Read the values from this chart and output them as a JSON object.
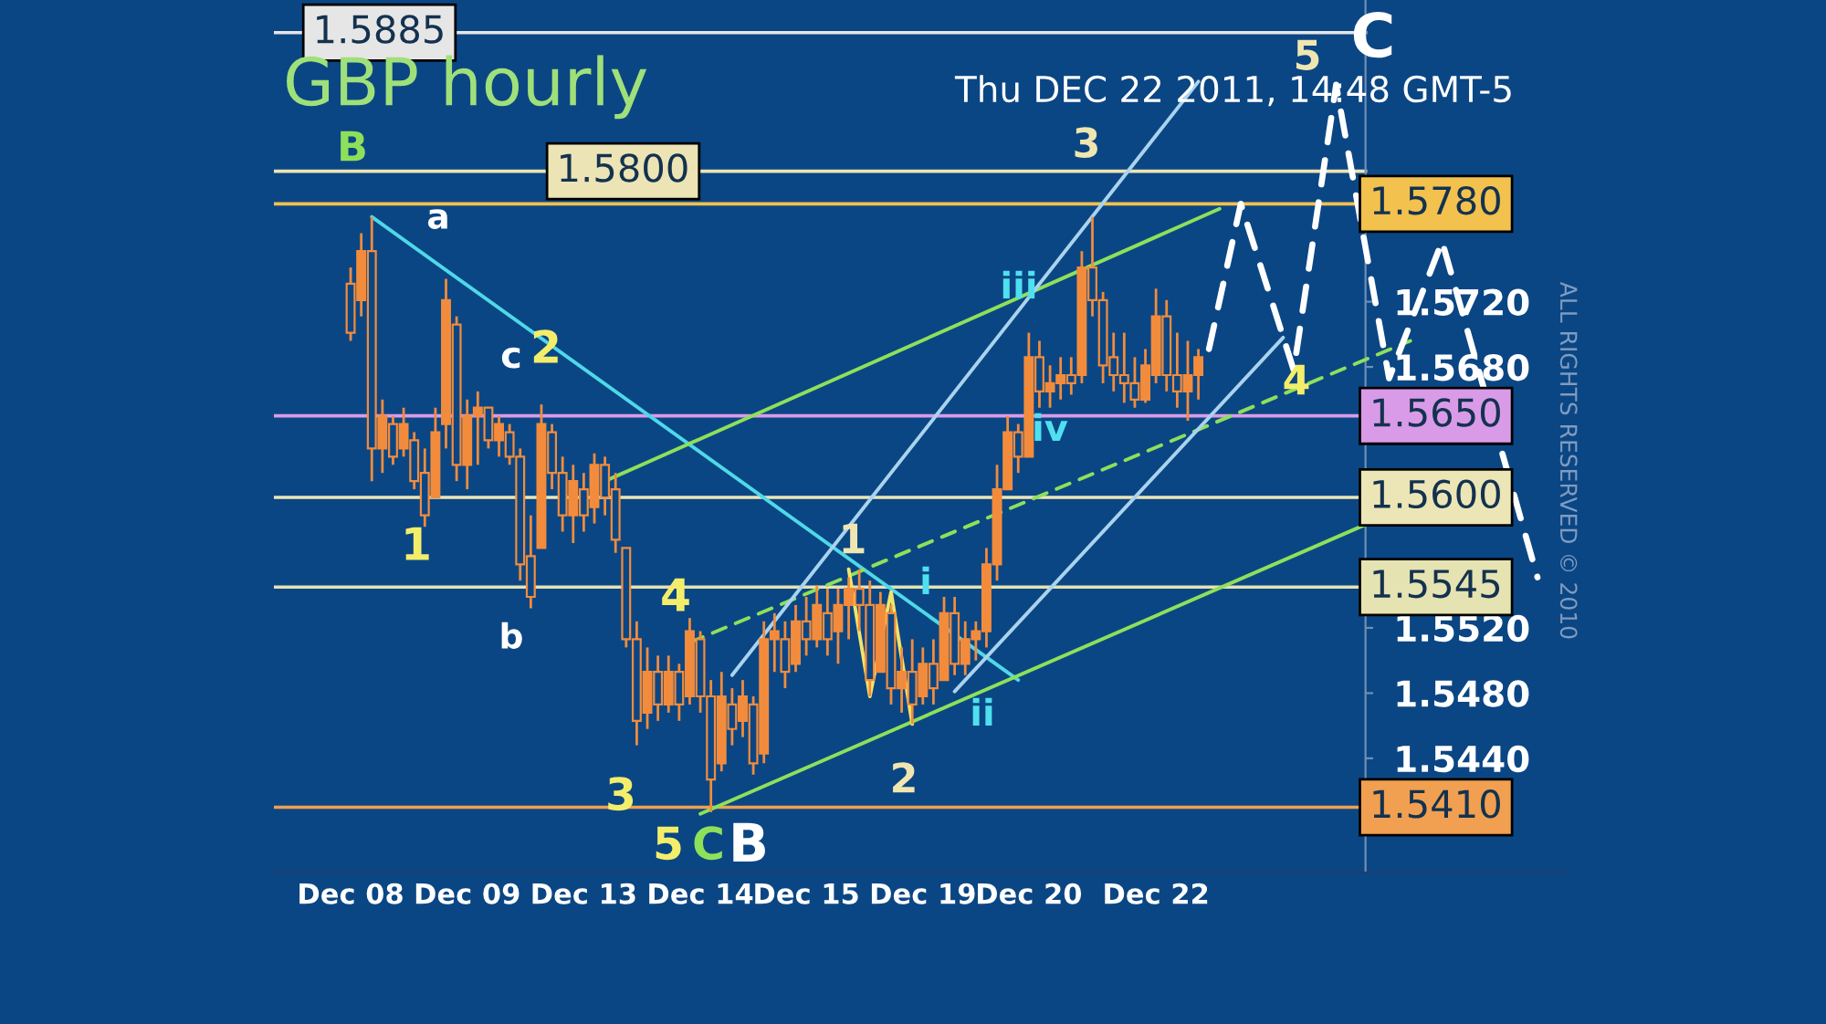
{
  "chart_data": {
    "type": "candlestick",
    "title": "GBP hourly",
    "subtitle": "Thu DEC 22 2011, 14:48 GMT-5",
    "color": "#f28c3c",
    "categories": [
      "Dec 08",
      null,
      null,
      null,
      null,
      null,
      null,
      null,
      null,
      null,
      null,
      "Dec 09",
      null,
      null,
      null,
      null,
      null,
      null,
      null,
      null,
      null,
      null,
      "Dec 13",
      null,
      null,
      null,
      null,
      null,
      null,
      null,
      null,
      null,
      null,
      "Dec 14",
      null,
      null,
      null,
      null,
      null,
      null,
      null,
      null,
      null,
      "Dec 15",
      null,
      null,
      null,
      null,
      null,
      null,
      null,
      null,
      null,
      null,
      "Dec 19",
      null,
      null,
      null,
      null,
      null,
      null,
      null,
      null,
      null,
      "Dec 20",
      null,
      null,
      null,
      null,
      null,
      null,
      null,
      null,
      null,
      null,
      null,
      "Dec 22",
      null,
      null,
      null,
      null,
      null,
      null,
      null,
      null,
      null,
      null,
      null,
      null,
      null,
      null,
      null,
      null,
      null,
      null,
      null,
      null,
      null,
      null,
      null,
      null,
      null,
      null,
      null,
      null,
      null,
      null,
      null,
      null,
      null,
      null,
      null,
      null
    ],
    "ohlc": [
      [
        1.5731,
        1.5741,
        1.5696,
        1.5701
      ],
      [
        1.5721,
        1.5762,
        1.5711,
        1.5751
      ],
      [
        1.5751,
        1.5772,
        1.561,
        1.563
      ],
      [
        1.563,
        1.566,
        1.5615,
        1.565
      ],
      [
        1.5645,
        1.565,
        1.562,
        1.5625
      ],
      [
        1.563,
        1.5655,
        1.5625,
        1.5645
      ],
      [
        1.5635,
        1.564,
        1.5605,
        1.561
      ],
      [
        1.5615,
        1.563,
        1.5582,
        1.5589
      ],
      [
        1.56,
        1.5655,
        1.56,
        1.564
      ],
      [
        1.5645,
        1.5734,
        1.563,
        1.5721
      ],
      [
        1.5706,
        1.5711,
        1.561,
        1.562
      ],
      [
        1.562,
        1.566,
        1.5605,
        1.565
      ],
      [
        1.565,
        1.5665,
        1.562,
        1.5655
      ],
      [
        1.5655,
        1.5655,
        1.563,
        1.5635
      ],
      [
        1.5635,
        1.565,
        1.5625,
        1.5645
      ],
      [
        1.564,
        1.5645,
        1.562,
        1.5625
      ],
      [
        1.5625,
        1.563,
        1.5549,
        1.5559
      ],
      [
        1.5564,
        1.5589,
        1.5532,
        1.5539
      ],
      [
        1.5569,
        1.5657,
        1.5569,
        1.5645
      ],
      [
        1.564,
        1.5645,
        1.5605,
        1.5615
      ],
      [
        1.5615,
        1.5625,
        1.5579,
        1.5589
      ],
      [
        1.5589,
        1.562,
        1.5572,
        1.561
      ],
      [
        1.5605,
        1.5615,
        1.5579,
        1.5589
      ],
      [
        1.5594,
        1.5627,
        1.5584,
        1.562
      ],
      [
        1.562,
        1.5625,
        1.5589,
        1.56
      ],
      [
        1.5605,
        1.5615,
        1.5566,
        1.5574
      ],
      [
        1.5569,
        1.5569,
        1.5508,
        1.5513
      ],
      [
        1.5513,
        1.5524,
        1.5448,
        1.5463
      ],
      [
        1.5468,
        1.5508,
        1.5458,
        1.5493
      ],
      [
        1.5493,
        1.5503,
        1.5463,
        1.5473
      ],
      [
        1.5473,
        1.5503,
        1.5468,
        1.5493
      ],
      [
        1.5493,
        1.5498,
        1.5463,
        1.5473
      ],
      [
        1.5478,
        1.5526,
        1.5473,
        1.5518
      ],
      [
        1.5513,
        1.5518,
        1.5468,
        1.5478
      ],
      [
        1.5478,
        1.5488,
        1.5407,
        1.5427
      ],
      [
        1.5437,
        1.5493,
        1.5432,
        1.5478
      ],
      [
        1.5473,
        1.5483,
        1.5448,
        1.5458
      ],
      [
        1.5463,
        1.5488,
        1.5453,
        1.5478
      ],
      [
        1.5473,
        1.5478,
        1.543,
        1.5437
      ],
      [
        1.5443,
        1.5524,
        1.5437,
        1.5513
      ],
      [
        1.5513,
        1.5529,
        1.5493,
        1.5518
      ],
      [
        1.5513,
        1.5524,
        1.5483,
        1.5493
      ],
      [
        1.5498,
        1.5534,
        1.5493,
        1.5524
      ],
      [
        1.5524,
        1.5539,
        1.5503,
        1.5513
      ],
      [
        1.5513,
        1.5546,
        1.5508,
        1.5534
      ],
      [
        1.5529,
        1.5544,
        1.5503,
        1.5513
      ],
      [
        1.5518,
        1.5544,
        1.5498,
        1.5534
      ],
      [
        1.5534,
        1.5551,
        1.5513,
        1.5544
      ],
      [
        1.5544,
        1.5556,
        1.5518,
        1.5534
      ],
      [
        1.5534,
        1.5549,
        1.5478,
        1.5488
      ],
      [
        1.5493,
        1.5542,
        1.5493,
        1.5534
      ],
      [
        1.5529,
        1.5534,
        1.5473,
        1.5483
      ],
      [
        1.5483,
        1.5508,
        1.5468,
        1.5493
      ],
      [
        1.5493,
        1.5513,
        1.5461,
        1.5473
      ],
      [
        1.5478,
        1.5508,
        1.5473,
        1.5498
      ],
      [
        1.5498,
        1.5513,
        1.5473,
        1.5483
      ],
      [
        1.5488,
        1.5539,
        1.5488,
        1.5529
      ],
      [
        1.5529,
        1.5539,
        1.5491,
        1.5498
      ],
      [
        1.5498,
        1.5524,
        1.5491,
        1.5513
      ],
      [
        1.5513,
        1.5524,
        1.55,
        1.5518
      ],
      [
        1.5518,
        1.5569,
        1.5508,
        1.5559
      ],
      [
        1.5559,
        1.562,
        1.5549,
        1.5605
      ],
      [
        1.5605,
        1.565,
        1.5605,
        1.564
      ],
      [
        1.564,
        1.5645,
        1.5615,
        1.5625
      ],
      [
        1.5625,
        1.5701,
        1.5625,
        1.5686
      ],
      [
        1.5686,
        1.5696,
        1.5655,
        1.5665
      ],
      [
        1.5665,
        1.5681,
        1.5655,
        1.567
      ],
      [
        1.567,
        1.5686,
        1.566,
        1.5675
      ],
      [
        1.5675,
        1.5686,
        1.5663,
        1.567
      ],
      [
        1.5675,
        1.5751,
        1.567,
        1.5741
      ],
      [
        1.5741,
        1.5772,
        1.5711,
        1.5721
      ],
      [
        1.5721,
        1.5726,
        1.567,
        1.5681
      ],
      [
        1.5686,
        1.5701,
        1.5665,
        1.5675
      ],
      [
        1.5675,
        1.5701,
        1.5658,
        1.567
      ],
      [
        1.567,
        1.5686,
        1.5655,
        1.566
      ],
      [
        1.566,
        1.5691,
        1.5658,
        1.5681
      ],
      [
        1.5675,
        1.5728,
        1.567,
        1.5711
      ],
      [
        1.5711,
        1.5721,
        1.5665,
        1.5675
      ],
      [
        1.5675,
        1.5701,
        1.5655,
        1.5665
      ],
      [
        1.5665,
        1.5696,
        1.5647,
        1.5675
      ],
      [
        1.5675,
        1.5691,
        1.566,
        1.5686
      ],
      null,
      null,
      null,
      null,
      null,
      null,
      null,
      null,
      null,
      null,
      null,
      null,
      null,
      null,
      null,
      null,
      null,
      null,
      null,
      null,
      null,
      null,
      null,
      null,
      null,
      null,
      null,
      null,
      null,
      null,
      null,
      null
    ],
    "series": [
      {
        "type": "line",
        "color": "#4fd8e8",
        "line_style": "solid",
        "values": [
          null,
          null,
          1.5772,
          null,
          null,
          null,
          null,
          null,
          null,
          null,
          null,
          null,
          null,
          null,
          null,
          null,
          null,
          null,
          null,
          null,
          null,
          null,
          null,
          null,
          null,
          null,
          null,
          null,
          null,
          null,
          null,
          null,
          null,
          null,
          null,
          null,
          null,
          null,
          null,
          null,
          null,
          null,
          null,
          null,
          null,
          null,
          null,
          null,
          null,
          null,
          null,
          null,
          null,
          null,
          null,
          null,
          null,
          null,
          null,
          null,
          null,
          null,
          null,
          1.5488,
          null,
          null,
          null,
          null,
          null,
          null,
          null,
          null,
          null,
          null,
          null,
          null,
          null,
          null,
          null,
          null,
          null,
          null,
          null,
          null,
          null,
          null,
          null,
          null,
          null,
          null,
          null,
          null,
          null,
          null,
          null,
          null,
          null,
          null,
          null,
          null,
          null,
          null,
          null,
          null,
          null,
          null,
          null,
          null,
          null,
          null,
          null,
          null,
          null
        ]
      },
      {
        "type": "line",
        "color": "#8ee05a",
        "line_style": "solid",
        "values": [
          null,
          null,
          null,
          null,
          null,
          null,
          null,
          null,
          null,
          null,
          null,
          null,
          null,
          null,
          null,
          null,
          null,
          null,
          null,
          null,
          null,
          null,
          null,
          null,
          1.561,
          null,
          null,
          null,
          null,
          null,
          null,
          null,
          null,
          null,
          null,
          null,
          null,
          null,
          null,
          null,
          null,
          null,
          null,
          null,
          null,
          null,
          null,
          null,
          null,
          null,
          null,
          null,
          null,
          null,
          null,
          null,
          null,
          null,
          null,
          null,
          null,
          null,
          null,
          null,
          null,
          null,
          null,
          null,
          null,
          null,
          null,
          null,
          null,
          null,
          null,
          null,
          null,
          null,
          null,
          null,
          null,
          null,
          1.5777,
          null,
          null,
          null,
          null,
          null,
          null,
          null,
          null,
          null,
          null,
          null,
          null,
          null,
          null,
          null,
          null,
          null,
          null,
          null,
          null,
          null,
          null,
          null,
          null,
          null,
          null,
          null,
          null,
          null,
          null
        ]
      },
      {
        "type": "line",
        "color": "#8ee05a",
        "line_style": "dashed",
        "values": [
          null,
          null,
          null,
          null,
          null,
          null,
          null,
          null,
          null,
          null,
          null,
          null,
          null,
          null,
          null,
          null,
          null,
          null,
          null,
          null,
          null,
          null,
          null,
          null,
          null,
          null,
          null,
          null,
          null,
          null,
          null,
          null,
          1.5511,
          null,
          null,
          null,
          null,
          null,
          null,
          null,
          null,
          null,
          null,
          null,
          null,
          null,
          null,
          null,
          null,
          null,
          null,
          null,
          null,
          null,
          null,
          null,
          null,
          null,
          null,
          null,
          null,
          null,
          null,
          null,
          null,
          null,
          null,
          null,
          null,
          null,
          null,
          null,
          null,
          null,
          null,
          null,
          null,
          null,
          null,
          null,
          null,
          null,
          null,
          null,
          null,
          null,
          null,
          null,
          null,
          null,
          null,
          null,
          null,
          null,
          null,
          null,
          null,
          null,
          null,
          null,
          1.5696,
          null,
          null,
          null,
          null,
          null,
          null,
          null,
          null,
          null,
          null,
          null,
          null
        ]
      },
      {
        "type": "line",
        "color": "#8ee05a",
        "line_style": "solid",
        "values": [
          null,
          null,
          null,
          null,
          null,
          null,
          null,
          null,
          null,
          null,
          null,
          null,
          null,
          null,
          null,
          null,
          null,
          null,
          null,
          null,
          null,
          null,
          null,
          null,
          null,
          null,
          null,
          null,
          null,
          null,
          null,
          null,
          null,
          1.5406,
          null,
          null,
          null,
          null,
          null,
          null,
          null,
          null,
          null,
          null,
          null,
          null,
          null,
          null,
          null,
          null,
          null,
          null,
          null,
          null,
          null,
          null,
          null,
          null,
          null,
          null,
          null,
          null,
          null,
          null,
          null,
          null,
          null,
          null,
          null,
          null,
          null,
          null,
          null,
          null,
          null,
          null,
          null,
          null,
          null,
          null,
          null,
          null,
          null,
          null,
          null,
          null,
          null,
          null,
          null,
          null,
          null,
          null,
          null,
          null,
          null,
          null,
          1.5584,
          null,
          null,
          null,
          null,
          null,
          null,
          null,
          null,
          null,
          null,
          null,
          null,
          null,
          null,
          null,
          null
        ]
      },
      {
        "type": "line",
        "color": "#a9d3ee",
        "line_style": "solid",
        "values": [
          null,
          null,
          null,
          null,
          null,
          null,
          null,
          null,
          null,
          null,
          null,
          null,
          null,
          null,
          null,
          null,
          null,
          null,
          null,
          null,
          null,
          null,
          null,
          null,
          null,
          null,
          null,
          null,
          null,
          null,
          null,
          null,
          null,
          null,
          null,
          null,
          1.5491,
          null,
          null,
          null,
          null,
          null,
          null,
          null,
          null,
          null,
          null,
          null,
          null,
          null,
          null,
          null,
          null,
          null,
          null,
          null,
          null,
          null,
          null,
          null,
          null,
          null,
          null,
          null,
          null,
          null,
          null,
          null,
          null,
          null,
          null,
          null,
          null,
          null,
          null,
          null,
          null,
          null,
          null,
          null,
          1.5855,
          null,
          null,
          null,
          null,
          null,
          null,
          null,
          null,
          null,
          null,
          null,
          null,
          null,
          null,
          null,
          null,
          null,
          null,
          null,
          null,
          null,
          null,
          null,
          null,
          null,
          null,
          null,
          null,
          null,
          null,
          null,
          null
        ]
      },
      {
        "type": "line",
        "color": "#a9d3ee",
        "line_style": "solid",
        "values": [
          null,
          null,
          null,
          null,
          null,
          null,
          null,
          null,
          null,
          null,
          null,
          null,
          null,
          null,
          null,
          null,
          null,
          null,
          null,
          null,
          null,
          null,
          null,
          null,
          null,
          null,
          null,
          null,
          null,
          null,
          null,
          null,
          null,
          null,
          null,
          null,
          null,
          null,
          null,
          null,
          null,
          null,
          null,
          null,
          null,
          null,
          null,
          null,
          null,
          null,
          null,
          null,
          null,
          null,
          null,
          null,
          null,
          1.5481,
          null,
          null,
          null,
          null,
          null,
          null,
          null,
          null,
          null,
          null,
          null,
          null,
          null,
          null,
          null,
          null,
          null,
          null,
          null,
          null,
          null,
          null,
          null,
          null,
          null,
          null,
          null,
          null,
          null,
          null,
          1.5698,
          null,
          null,
          null,
          null,
          null,
          null,
          null,
          null,
          null,
          null,
          null,
          null,
          null,
          null,
          null,
          null,
          null,
          null,
          null,
          null,
          null,
          null,
          null,
          null
        ]
      },
      {
        "type": "line",
        "color": "#f2e46a",
        "line_style": "solid",
        "values": [
          null,
          null,
          null,
          null,
          null,
          null,
          null,
          null,
          null,
          null,
          null,
          null,
          null,
          null,
          null,
          null,
          null,
          null,
          null,
          null,
          null,
          null,
          null,
          null,
          null,
          null,
          null,
          null,
          null,
          null,
          null,
          null,
          null,
          null,
          null,
          null,
          null,
          null,
          null,
          null,
          null,
          null,
          null,
          null,
          null,
          null,
          null,
          1.5556,
          null,
          1.5478,
          null,
          1.5542,
          null,
          1.5461,
          null,
          null,
          null,
          null,
          null,
          null,
          null,
          null,
          null,
          null,
          null,
          null,
          null,
          null,
          null,
          null,
          null,
          null,
          null,
          null,
          null,
          null,
          null,
          null,
          null,
          null,
          null,
          null,
          null,
          null,
          null,
          null,
          null,
          null,
          null,
          null,
          null,
          null,
          null,
          null,
          null,
          null,
          null,
          null,
          null,
          null,
          null,
          null,
          null,
          null,
          null,
          null,
          null,
          null,
          null,
          null,
          null,
          null,
          null
        ]
      },
      {
        "type": "line",
        "color": "#ffffff",
        "line_style": "dashed",
        "values": [
          null,
          null,
          null,
          null,
          null,
          null,
          null,
          null,
          null,
          null,
          null,
          null,
          null,
          null,
          null,
          null,
          null,
          null,
          null,
          null,
          null,
          null,
          null,
          null,
          null,
          null,
          null,
          null,
          null,
          null,
          null,
          null,
          null,
          null,
          null,
          null,
          null,
          null,
          null,
          null,
          null,
          null,
          null,
          null,
          null,
          null,
          null,
          null,
          null,
          null,
          null,
          null,
          null,
          null,
          null,
          null,
          null,
          null,
          null,
          null,
          null,
          null,
          null,
          null,
          null,
          null,
          null,
          null,
          null,
          null,
          null,
          null,
          null,
          null,
          null,
          null,
          null,
          null,
          null,
          null,
          null,
          1.5691,
          null,
          null,
          1.578,
          null,
          null,
          null,
          null,
          1.5678,
          null,
          null,
          null,
          1.5853,
          null,
          null,
          null,
          null,
          1.5673,
          null,
          null,
          null,
          null,
          1.5757,
          null,
          null,
          null,
          null,
          null,
          null,
          null,
          null,
          1.5551
        ]
      }
    ],
    "ref_lines": [
      {
        "axis": "y",
        "value": 1.5885,
        "label": "1.5885",
        "color": "#e6e6e6"
      },
      {
        "axis": "y",
        "value": 1.58,
        "label": "1.5800",
        "color": "#ece4b4"
      },
      {
        "axis": "y",
        "value": 1.578,
        "label": "1.5780",
        "color": "#f2c14e"
      },
      {
        "axis": "y",
        "value": 1.565,
        "label": "1.5650",
        "color": "#d99be8"
      },
      {
        "axis": "y",
        "value": 1.56,
        "label": "1.5600",
        "color": "#ece6b6"
      },
      {
        "axis": "y",
        "value": 1.5545,
        "label": "1.5545",
        "color": "#e6e3b2"
      },
      {
        "axis": "y",
        "value": 1.541,
        "label": "1.5410",
        "color": "#f0a050"
      }
    ],
    "annotations": [
      "B",
      "a",
      "c",
      "2",
      "1",
      "b",
      "4",
      "3",
      "5",
      "C",
      "B",
      "1",
      "i",
      "2",
      "ii",
      "iii",
      "iv",
      "3",
      "4",
      "5",
      "C",
      "ALL RIGHTS RESERVED © 2010"
    ],
    "ylim": [
      1.537,
      1.5905
    ],
    "yticks": [
      {
        "value": 1.544,
        "label": "1.5440"
      },
      {
        "value": 1.548,
        "label": "1.5480"
      },
      {
        "value": 1.552,
        "label": "1.5520"
      },
      {
        "value": 1.568,
        "label": "1.5680"
      },
      {
        "value": 1.572,
        "label": "1.5720"
      }
    ]
  }
}
